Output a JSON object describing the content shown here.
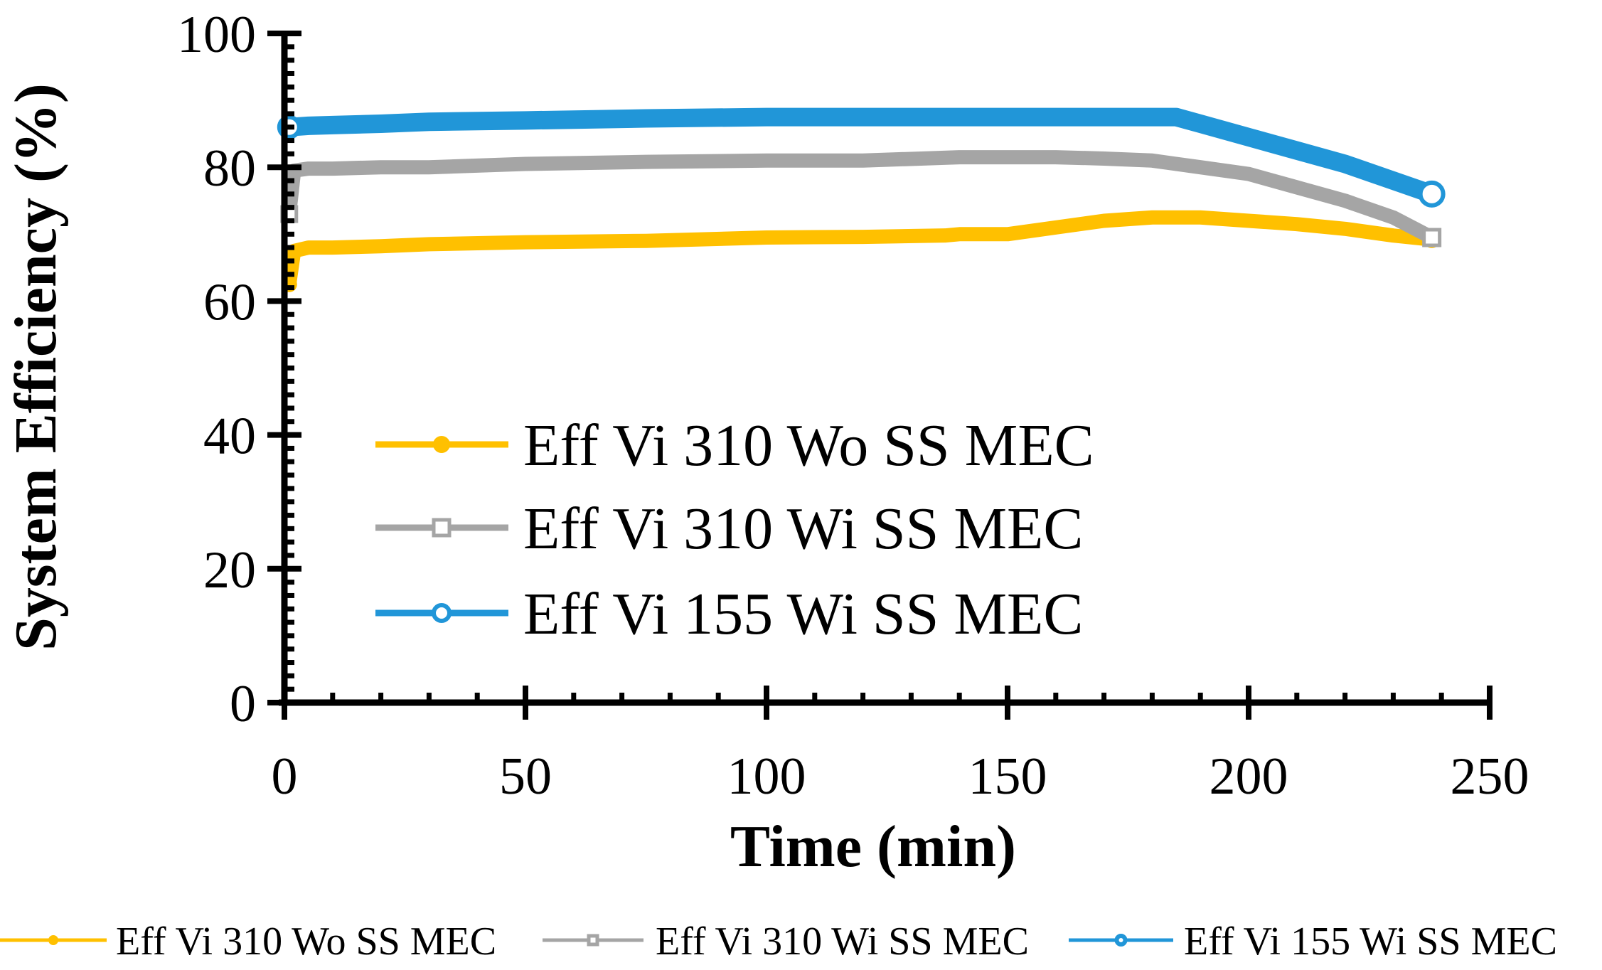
{
  "chart_data": {
    "type": "line",
    "title": "",
    "xlabel": "Time (min)",
    "ylabel": "System Efficiency (%)",
    "xlim": [
      0,
      250
    ],
    "ylim": [
      0,
      100
    ],
    "x_ticks": [
      0,
      50,
      100,
      150,
      200,
      250
    ],
    "y_ticks": [
      0,
      20,
      40,
      60,
      80,
      100
    ],
    "x_tick_labels": [
      "0",
      "50",
      "100",
      "150",
      "200",
      "250"
    ],
    "y_tick_labels": [
      "0",
      "20",
      "40",
      "60",
      "80",
      "100"
    ],
    "grid": false,
    "legend_inside": "center-left",
    "legend_bottom": "bottom",
    "series": [
      {
        "name": "Eff Vi 310 Wo SS MEC",
        "color": "#FFC000",
        "marker": "filled-circle",
        "x": [
          1,
          2,
          5,
          10,
          20,
          30,
          50,
          75,
          100,
          120,
          137,
          140,
          150,
          160,
          170,
          180,
          190,
          200,
          210,
          220,
          230,
          238
        ],
        "y": [
          62.5,
          67.5,
          68.0,
          68.0,
          68.2,
          68.5,
          68.8,
          69.0,
          69.5,
          69.6,
          69.8,
          70.0,
          70.0,
          71.0,
          72.0,
          72.5,
          72.5,
          72.0,
          71.5,
          70.8,
          69.8,
          69.2
        ]
      },
      {
        "name": "Eff Vi 310 Wi SS MEC",
        "color": "#A5A5A5",
        "marker": "square",
        "x": [
          1,
          2,
          5,
          10,
          20,
          30,
          50,
          75,
          100,
          120,
          140,
          150,
          160,
          170,
          180,
          190,
          200,
          210,
          220,
          230,
          238
        ],
        "y": [
          73.0,
          79.5,
          79.8,
          79.8,
          80.0,
          80.0,
          80.5,
          80.8,
          81.0,
          81.0,
          81.5,
          81.5,
          81.5,
          81.3,
          81.0,
          80.0,
          79.0,
          77.0,
          75.0,
          72.5,
          69.5
        ]
      },
      {
        "name": "Eff Vi 155 Wi SS MEC",
        "color": "#2196D8",
        "marker": "open-circle",
        "x": [
          1,
          5,
          10,
          20,
          30,
          50,
          75,
          100,
          120,
          150,
          170,
          180,
          185,
          190,
          200,
          210,
          220,
          230,
          238
        ],
        "y": [
          86.0,
          86.2,
          86.3,
          86.5,
          86.8,
          87.0,
          87.3,
          87.5,
          87.5,
          87.5,
          87.5,
          87.5,
          87.5,
          86.5,
          84.5,
          82.5,
          80.5,
          78.0,
          76.0
        ]
      }
    ]
  }
}
